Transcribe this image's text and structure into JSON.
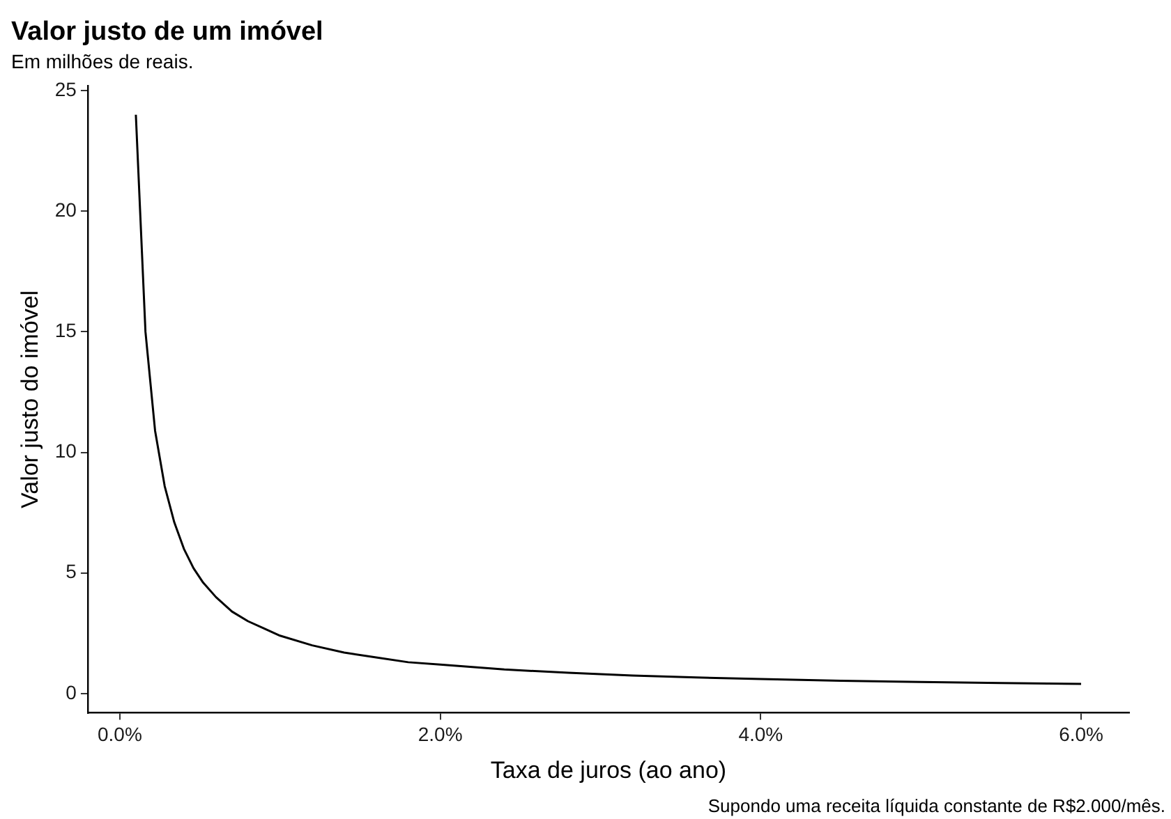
{
  "chart_data": {
    "type": "line",
    "title": "Valor justo de um imóvel",
    "subtitle": "Em milhões de reais.",
    "xlabel": "Taxa de juros (ao ano)",
    "ylabel": "Valor justo do imóvel",
    "annotations": [
      "Supondo uma receita líquida constante de R$2.000/mês."
    ],
    "x": [
      0.1,
      0.16,
      0.22,
      0.28,
      0.34,
      0.4,
      0.46,
      0.52,
      0.6,
      0.7,
      0.8,
      0.9,
      1.0,
      1.2,
      1.4,
      1.6,
      1.8,
      2.0,
      2.4,
      2.8,
      3.2,
      3.6,
      4.0,
      4.5,
      5.0,
      5.5,
      6.0
    ],
    "series": [
      {
        "color": "#000000",
        "values": [
          24,
          15,
          10.9,
          8.6,
          7.1,
          6,
          5.2,
          4.6,
          4,
          3.4,
          3,
          2.7,
          2.4,
          2,
          1.7,
          1.5,
          1.3,
          1.2,
          1,
          0.86,
          0.75,
          0.67,
          0.6,
          0.53,
          0.48,
          0.44,
          0.4
        ]
      }
    ],
    "xlim": [
      -0.2,
      6.3
    ],
    "xticks": [
      {
        "value": 0,
        "label": "0.0%"
      },
      {
        "value": 2,
        "label": "2.0%"
      },
      {
        "value": 4,
        "label": "4.0%"
      },
      {
        "value": 6,
        "label": "6.0%"
      }
    ],
    "ylim": [
      -0.8,
      25.2
    ],
    "yticks": [
      0,
      5,
      10,
      15,
      20,
      25
    ],
    "grid": false,
    "legend": false,
    "marker": "none",
    "line_style": "solid"
  }
}
